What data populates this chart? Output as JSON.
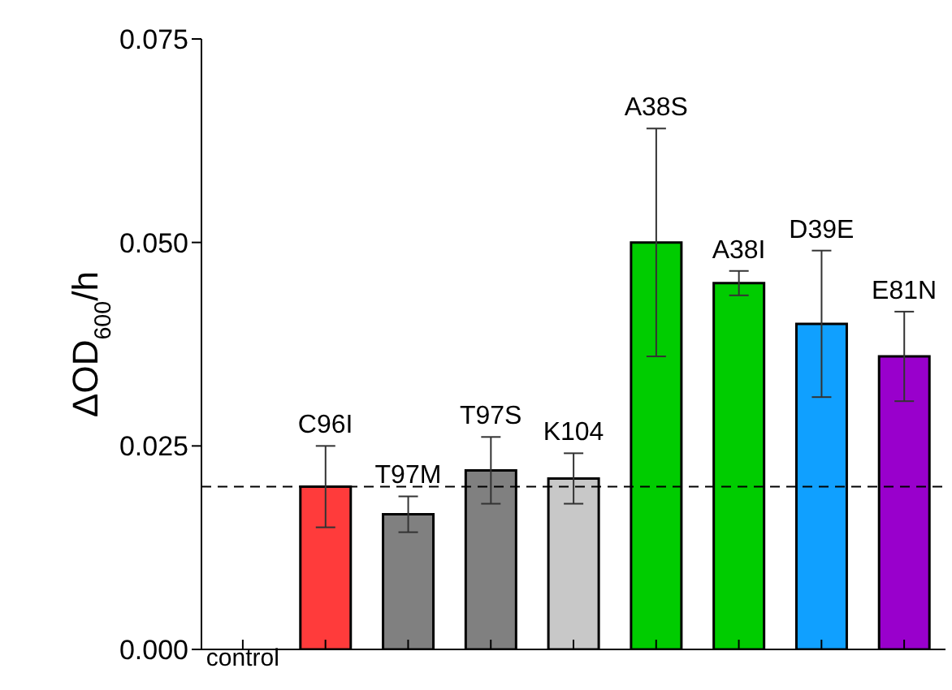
{
  "chart_data": {
    "type": "bar",
    "ylabel": "ΔOD$_{600}$/h",
    "categories": [
      "control",
      "C96I",
      "T97M",
      "T97S",
      "K104",
      "A38S",
      "A38I",
      "D39E",
      "E81N"
    ],
    "values": [
      null,
      0.02,
      0.0166,
      0.022,
      0.021,
      0.05,
      0.045,
      0.04,
      0.036
    ],
    "errors": [
      null,
      0.005,
      0.0022,
      0.0041,
      0.0031,
      0.014,
      0.0015,
      0.009,
      0.0055
    ],
    "colors": [
      "#888888",
      "#ff3b3b",
      "#808080",
      "#808080",
      "#c8c8c8",
      "#00cc00",
      "#00cc00",
      "#10a0ff",
      "#9900cc"
    ],
    "ylim": [
      0,
      0.075
    ],
    "yticks": [
      {
        "value": 0,
        "label": "0.000"
      },
      {
        "value": 0.025,
        "label": "0.025"
      },
      {
        "value": 0.05,
        "label": "0.050"
      },
      {
        "value": 0.075,
        "label": "0.075"
      }
    ],
    "ref_lines": [
      {
        "axis": "y",
        "value": 0.02,
        "color": "#000000",
        "line_style": "dashed"
      }
    ],
    "grid": false,
    "legend": false
  }
}
